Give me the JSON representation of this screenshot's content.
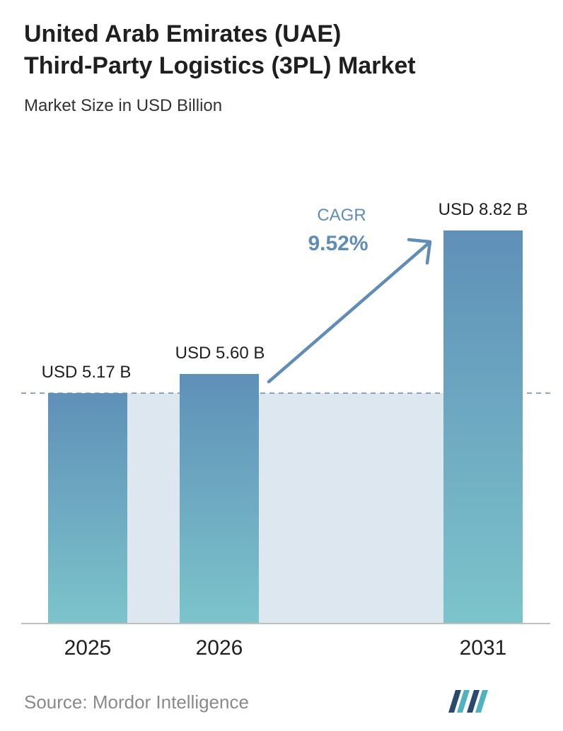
{
  "header": {
    "title_line1": "United Arab Emirates (UAE)",
    "title_line2": "Third-Party Logistics (3PL) Market",
    "subtitle": "Market Size in USD Billion"
  },
  "chart_data": {
    "type": "bar",
    "categories": [
      "2025",
      "2026",
      "2031"
    ],
    "values": [
      5.17,
      5.6,
      8.82
    ],
    "value_labels": [
      "USD 5.17 B",
      "USD 5.60 B",
      "USD 8.82 B"
    ],
    "title": "United Arab Emirates (UAE) Third-Party Logistics (3PL) Market",
    "subtitle": "Market Size in USD Billion",
    "ylim": [
      0,
      8.82
    ],
    "grid": false,
    "reference_line": 5.17,
    "annotation": {
      "label": "CAGR",
      "value": "9.52%"
    }
  },
  "footer": {
    "source": "Source:  Mordor Intelligence"
  },
  "colors": {
    "bar_top": "#5f90b8",
    "bar_bottom": "#7cc4cb",
    "band": "#dde7f0",
    "arrow": "#5f8db5",
    "baseline": "#bfbfbf",
    "logo_dark": "#2b4a6e",
    "logo_teal": "#4fb3bf"
  }
}
